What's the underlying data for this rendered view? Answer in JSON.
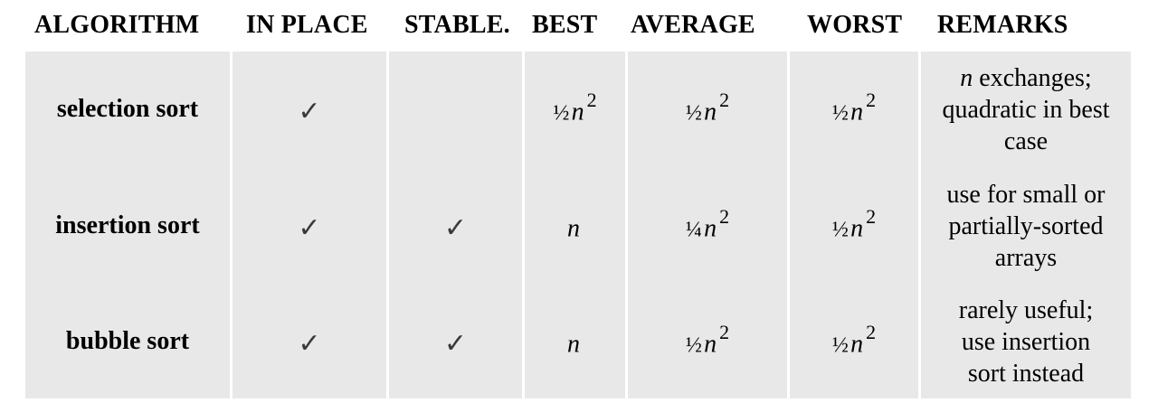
{
  "headers": {
    "algorithm": "ALGORITHM",
    "in_place": "IN PLACE",
    "stable": "STABLE.",
    "best": "BEST",
    "average": "AVERAGE",
    "worst": "WORST",
    "remarks": "REMARKS"
  },
  "rows": [
    {
      "algorithm": "selection sort",
      "in_place": "✓",
      "stable": "",
      "best": {
        "coef": "½",
        "var": "n",
        "exp": "2"
      },
      "average": {
        "coef": "½",
        "var": "n",
        "exp": "2"
      },
      "worst": {
        "coef": "½",
        "var": "n",
        "exp": "2"
      },
      "remarks": {
        "var": "n",
        "line1_rest": " exchanges;",
        "line2": "quadratic in best",
        "line3": "case"
      }
    },
    {
      "algorithm": "insertion sort",
      "in_place": "✓",
      "stable": "✓",
      "best": {
        "coef": "",
        "var": "n",
        "exp": ""
      },
      "average": {
        "coef": "¼",
        "var": "n",
        "exp": "2"
      },
      "worst": {
        "coef": "½",
        "var": "n",
        "exp": "2"
      },
      "remarks": {
        "line1": "use for small or",
        "line2": "partially-sorted",
        "line3": "arrays"
      }
    },
    {
      "algorithm": "bubble sort",
      "in_place": "✓",
      "stable": "✓",
      "best": {
        "coef": "",
        "var": "n",
        "exp": ""
      },
      "average": {
        "coef": "½",
        "var": "n",
        "exp": "2"
      },
      "worst": {
        "coef": "½",
        "var": "n",
        "exp": "2"
      },
      "remarks": {
        "line1": "rarely useful;",
        "line2": "use insertion",
        "line3": "sort instead"
      }
    }
  ],
  "colors": {
    "cell_background": "#e8e8e8",
    "checkmark": "#3a3a3a"
  }
}
